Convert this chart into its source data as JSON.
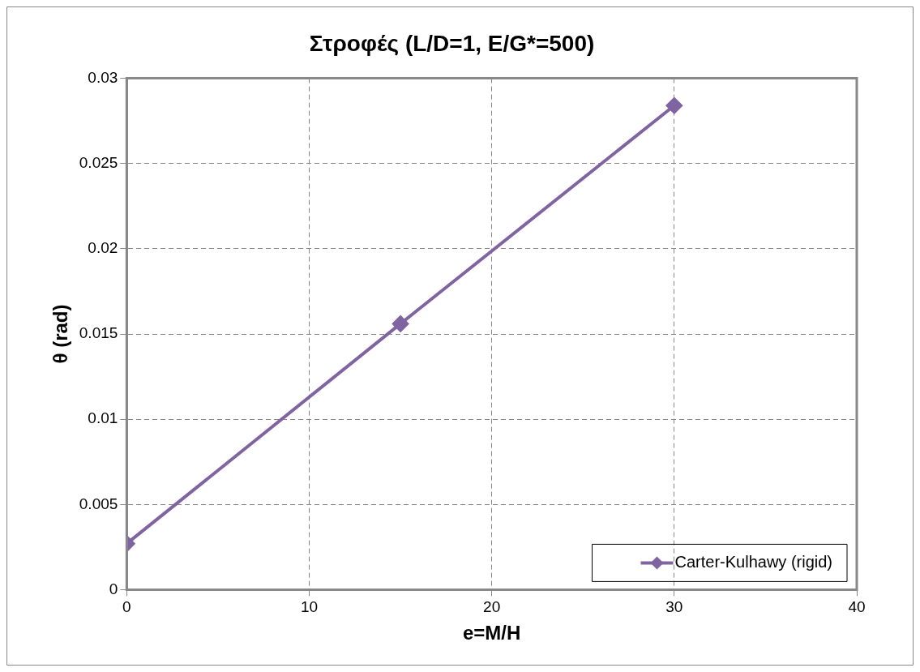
{
  "chart_data": {
    "type": "line",
    "title": "Στροφές (L/D=1, E/G*=500)",
    "xlabel": "e=M/H",
    "ylabel": "θ (rad)",
    "x": [
      0,
      15,
      30
    ],
    "series": [
      {
        "name": "Carter-Kulhawy (rigid)",
        "color": "#8064a2",
        "values": [
          0.0027,
          0.0156,
          0.0284
        ]
      }
    ],
    "xlim": [
      0,
      40
    ],
    "xticks": [
      0,
      10,
      20,
      30,
      40
    ],
    "ylim": [
      0,
      0.03
    ],
    "yticks": [
      0,
      0.005,
      0.01,
      0.015,
      0.02,
      0.025,
      0.03
    ],
    "grid": true,
    "legend": "bottom right",
    "marker": "diamond",
    "line_style": "solid"
  }
}
